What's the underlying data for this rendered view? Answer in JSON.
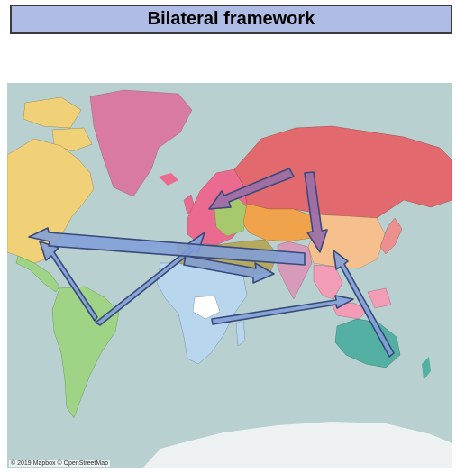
{
  "header": {
    "title": "Bilateral framework"
  },
  "map": {
    "attribution": "© 2019 Mapbox © OpenStreetMap",
    "colors": {
      "ocean": "#b8d0cf",
      "greenland": "#d97aa3",
      "north_america": "#f1d178",
      "latin_america": "#9fd486",
      "europe": "#ea6b8f",
      "russia": "#e26a6f",
      "middle_east": "#b5a85f",
      "central_asia": "#f0a34a",
      "south_asia": "#d89ab9",
      "east_asia": "#f6c08e",
      "southeast_asia": "#f29db5",
      "africa": "#b8d7ef",
      "oceania": "#54b0a3",
      "antarctica": "#eef1f1",
      "arrow_blue": "#7f9ed9",
      "arrow_purple": "#9b6fa8",
      "arrow_outline": "#3a4a78"
    },
    "arrows": [
      {
        "id": "brazil-to-north-america"
      },
      {
        "id": "brazil-to-europe"
      },
      {
        "id": "india-to-north-america"
      },
      {
        "id": "europe-to-india"
      },
      {
        "id": "russia-to-europe"
      },
      {
        "id": "russia-to-china"
      },
      {
        "id": "australia-to-china"
      },
      {
        "id": "africa-to-southeast-asia"
      }
    ]
  }
}
